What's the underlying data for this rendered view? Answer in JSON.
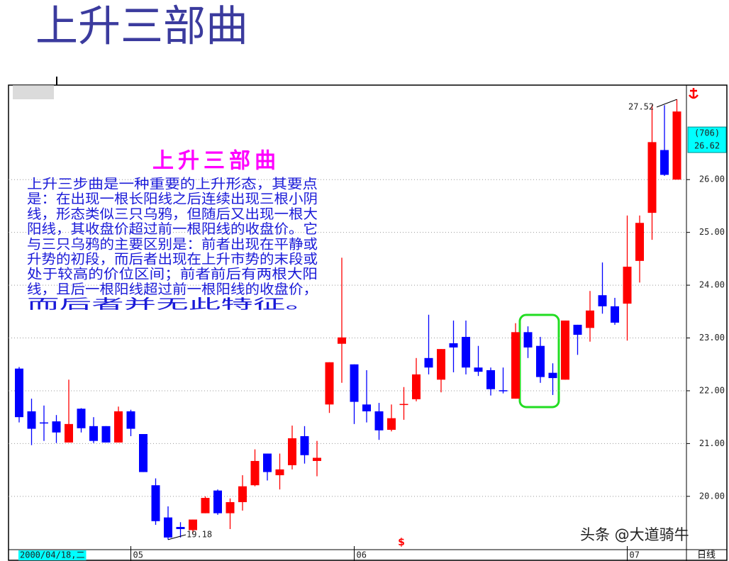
{
  "page_title": "上升三部曲",
  "chart_data": {
    "type": "candlestick",
    "title": "上升三部曲",
    "description": [
      "上升三步曲是一种重要的上升形态，其要点",
      "是：在出现一根长阳线之后连续出现三根小阴",
      "线，形态类似三只乌鸦，但随后又出现一根大",
      "阳线，其收盘价超过前一根阳线的收盘价。它",
      "与三只乌鸦的主要区别是：前者出现在平静或",
      "升势的初段，而后者出现在上升市势的末段或",
      "处于较高的价位区间；前者前后有两根大阳",
      "线，且后一根阳线超过前一根阳线的收盘价，",
      "而后者并无此特征。"
    ],
    "categories": [
      "2000/04/18,二",
      null,
      null,
      null,
      null,
      null,
      null,
      null,
      null,
      "05",
      null,
      null,
      null,
      null,
      null,
      null,
      null,
      null,
      null,
      null,
      null,
      null,
      null,
      null,
      null,
      null,
      null,
      "06",
      null,
      null,
      null,
      null,
      null,
      null,
      null,
      null,
      null,
      null,
      null,
      null,
      null,
      null,
      null,
      null,
      null,
      null,
      null,
      null,
      null,
      "07",
      null,
      null,
      null,
      null
    ],
    "open": [
      22.42,
      21.61,
      21.4,
      21.42,
      21.02,
      21.66,
      21.33,
      21.33,
      21.02,
      21.61,
      21.18,
      20.21,
      19.6,
      19.42,
      19.36,
      19.68,
      20.11,
      19.68,
      19.89,
      20.21,
      20.81,
      20.4,
      20.59,
      21.14,
      20.67,
      21.74,
      22.89,
      22.5,
      21.74,
      21.61,
      21.26,
      21.74,
      21.84,
      22.62,
      22.21,
      22.9,
      23.02,
      22.44,
      22.39,
      22.01,
      21.85,
      23.11,
      22.85,
      22.34,
      22.21,
      23.25,
      23.19,
      23.81,
      23.6,
      23.65,
      24.46,
      25.37,
      26.56,
      26.0
    ],
    "high": [
      22.45,
      21.85,
      21.72,
      21.54,
      22.21,
      21.67,
      21.5,
      21.33,
      21.7,
      21.64,
      21.18,
      20.34,
      19.81,
      19.51,
      19.56,
      20.0,
      20.13,
      19.96,
      20.4,
      20.89,
      20.81,
      20.81,
      21.34,
      21.33,
      21.05,
      22.54,
      24.52,
      22.5,
      22.39,
      21.77,
      21.74,
      22.07,
      22.62,
      23.44,
      22.79,
      23.33,
      23.33,
      22.85,
      22.44,
      22.44,
      23.28,
      23.22,
      23.02,
      22.52,
      23.33,
      23.25,
      23.89,
      24.43,
      23.76,
      25.32,
      25.32,
      27.41,
      27.41,
      27.52
    ],
    "low": [
      21.4,
      20.97,
      21.05,
      21.01,
      21.02,
      21.21,
      21.01,
      21.02,
      21.02,
      21.14,
      20.46,
      19.46,
      19.18,
      19.22,
      19.3,
      19.68,
      19.65,
      19.38,
      19.73,
      20.19,
      20.3,
      20.13,
      20.51,
      20.62,
      20.38,
      21.58,
      22.15,
      21.37,
      21.4,
      21.07,
      21.23,
      21.45,
      21.8,
      22.31,
      21.97,
      22.35,
      22.31,
      22.28,
      21.91,
      21.95,
      21.85,
      22.62,
      22.15,
      21.92,
      22.21,
      22.68,
      22.93,
      23.46,
      23.25,
      22.95,
      24.05,
      24.86,
      26.07,
      26.0
    ],
    "close": [
      21.5,
      21.28,
      21.38,
      21.21,
      21.37,
      21.29,
      21.05,
      21.02,
      21.61,
      21.28,
      20.46,
      19.53,
      19.22,
      19.38,
      19.56,
      19.97,
      19.68,
      19.89,
      20.19,
      20.67,
      20.46,
      20.51,
      21.1,
      20.78,
      20.73,
      22.54,
      23.01,
      21.79,
      21.61,
      21.25,
      21.48,
      21.75,
      22.31,
      22.44,
      22.79,
      22.82,
      22.44,
      22.36,
      22.03,
      21.99,
      23.11,
      22.82,
      22.26,
      22.24,
      23.33,
      23.06,
      23.52,
      23.6,
      23.29,
      24.35,
      25.18,
      26.71,
      26.09,
      27.29
    ],
    "up_color": "#ff0000",
    "down_color": "#0000ff",
    "ylim": [
      18.99,
      27.79
    ],
    "yticks": [
      {
        "value": 20,
        "label": "20.00"
      },
      {
        "value": 21,
        "label": "21.00"
      },
      {
        "value": 22,
        "label": "22.00"
      },
      {
        "value": 23,
        "label": "23.00"
      },
      {
        "value": 24,
        "label": "24.00"
      },
      {
        "value": 25,
        "label": "25.00"
      },
      {
        "value": 26,
        "label": "26.00"
      }
    ],
    "grid": true,
    "current_count": "(706)",
    "current_price": 26.62,
    "event_marker": "$",
    "period_label": "日线",
    "watermark": "头条 @大道骑牛"
  }
}
